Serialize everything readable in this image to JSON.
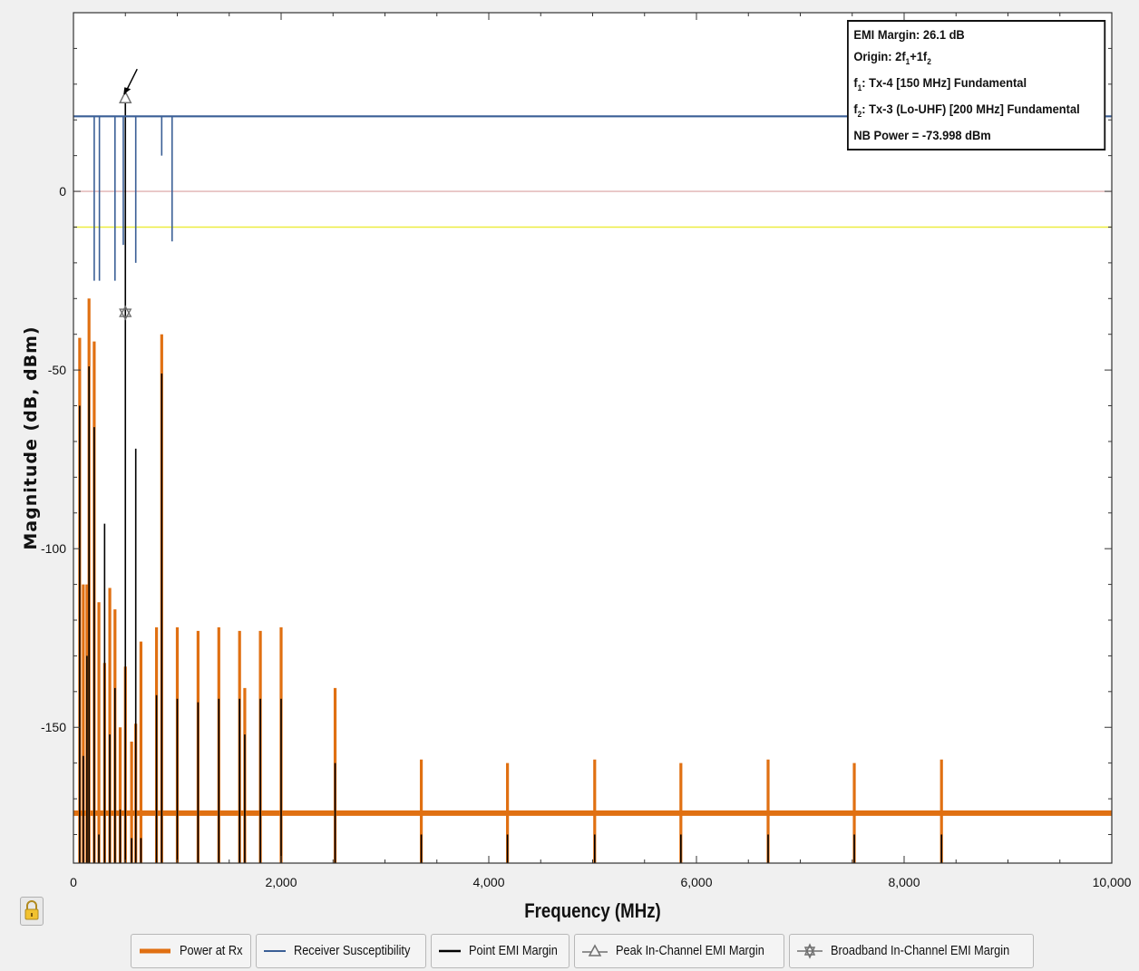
{
  "colors": {
    "power": "#e07012",
    "susceptibility": "#3a5f96",
    "point_margin": "#000000",
    "peak_margin": "#707070",
    "broadband_margin": "#707070",
    "zero_line": "#d9a0a0",
    "threshold_line": "#ecec40",
    "plot_bg": "#ffffff"
  },
  "info_box": {
    "line1": "EMI Margin: 26.1 dB",
    "line2_prefix": "Origin: 2f",
    "line2_sub1": "1",
    "line2_mid": "+1f",
    "line2_sub2": "2",
    "line3_prefix": "f",
    "line3_sub": "1",
    "line3_text": ": Tx-4 [150 MHz] Fundamental",
    "line4_prefix": "f",
    "line4_sub": "2",
    "line4_text": ": Tx-3 (Lo-UHF) [200 MHz] Fundamental",
    "line5": "NB Power = -73.998 dBm"
  },
  "legend": [
    {
      "label": "Power at Rx",
      "icon": "thick-orange-line-icon"
    },
    {
      "label": "Receiver Susceptibility",
      "icon": "blue-line-icon"
    },
    {
      "label": "Point EMI Margin",
      "icon": "black-line-icon"
    },
    {
      "label": "Peak In-Channel EMI Margin",
      "icon": "triangle-marker-icon"
    },
    {
      "label": "Broadband In-Channel EMI Margin",
      "icon": "star-marker-icon"
    }
  ],
  "lock_icon": "padlock-icon",
  "chart_data": {
    "type": "line",
    "xlabel": "Frequency (MHz)",
    "ylabel": "Magnitude (dB, dBm)",
    "xlim": [
      0,
      10000
    ],
    "ylim": [
      -188,
      50
    ],
    "x_ticks": [
      0,
      2000,
      4000,
      6000,
      8000,
      10000
    ],
    "x_tick_labels": [
      "0",
      "2,000",
      "4,000",
      "6,000",
      "8,000",
      "10,000"
    ],
    "y_ticks": [
      0,
      -50,
      -100,
      -150
    ],
    "y_tick_labels": [
      "0",
      "-50",
      "-100",
      "-150"
    ],
    "grid": false,
    "legend_position": "bottom",
    "power_floor": -174,
    "susceptibility_level": 21,
    "zero_line": 0,
    "threshold_line": -10,
    "power_spikes": [
      {
        "x": 60,
        "y": -41
      },
      {
        "x": 95,
        "y": -110
      },
      {
        "x": 130,
        "y": -110
      },
      {
        "x": 150,
        "y": -30
      },
      {
        "x": 200,
        "y": -42
      },
      {
        "x": 245,
        "y": -115
      },
      {
        "x": 300,
        "y": -132
      },
      {
        "x": 350,
        "y": -111
      },
      {
        "x": 400,
        "y": -117
      },
      {
        "x": 450,
        "y": -150
      },
      {
        "x": 500,
        "y": -133
      },
      {
        "x": 560,
        "y": -154
      },
      {
        "x": 600,
        "y": -149
      },
      {
        "x": 650,
        "y": -126
      },
      {
        "x": 800,
        "y": -122
      },
      {
        "x": 850,
        "y": -40
      },
      {
        "x": 1000,
        "y": -122
      },
      {
        "x": 1200,
        "y": -123
      },
      {
        "x": 1400,
        "y": -122
      },
      {
        "x": 1600,
        "y": -123
      },
      {
        "x": 1650,
        "y": -139
      },
      {
        "x": 1800,
        "y": -123
      },
      {
        "x": 2000,
        "y": -122
      },
      {
        "x": 2520,
        "y": -139
      },
      {
        "x": 3350,
        "y": -159
      },
      {
        "x": 4180,
        "y": -160
      },
      {
        "x": 5020,
        "y": -159
      },
      {
        "x": 5850,
        "y": -160
      },
      {
        "x": 6690,
        "y": -159
      },
      {
        "x": 7520,
        "y": -160
      },
      {
        "x": 8360,
        "y": -159
      }
    ],
    "point_margin_lines": [
      {
        "x": 60,
        "y": -60
      },
      {
        "x": 95,
        "y": -158
      },
      {
        "x": 130,
        "y": -130
      },
      {
        "x": 150,
        "y": -49
      },
      {
        "x": 200,
        "y": -66
      },
      {
        "x": 245,
        "y": -180
      },
      {
        "x": 300,
        "y": -93
      },
      {
        "x": 350,
        "y": -152
      },
      {
        "x": 400,
        "y": -139
      },
      {
        "x": 450,
        "y": -173
      },
      {
        "x": 500,
        "y": 26
      },
      {
        "x": 560,
        "y": -181
      },
      {
        "x": 600,
        "y": -72
      },
      {
        "x": 650,
        "y": -181
      },
      {
        "x": 800,
        "y": -141
      },
      {
        "x": 850,
        "y": -51
      },
      {
        "x": 1000,
        "y": -142
      },
      {
        "x": 1200,
        "y": -143
      },
      {
        "x": 1400,
        "y": -142
      },
      {
        "x": 1600,
        "y": -142
      },
      {
        "x": 1650,
        "y": -152
      },
      {
        "x": 1800,
        "y": -142
      },
      {
        "x": 2000,
        "y": -142
      },
      {
        "x": 2520,
        "y": -160
      },
      {
        "x": 3350,
        "y": -180
      },
      {
        "x": 4180,
        "y": -180
      },
      {
        "x": 5020,
        "y": -180
      },
      {
        "x": 5850,
        "y": -180
      },
      {
        "x": 6690,
        "y": -180
      },
      {
        "x": 7520,
        "y": -180
      },
      {
        "x": 8360,
        "y": -180
      }
    ],
    "susceptibility_notches": [
      {
        "x": 200,
        "y": -25
      },
      {
        "x": 250,
        "y": -25
      },
      {
        "x": 400,
        "y": -25
      },
      {
        "x": 480,
        "y": -15
      },
      {
        "x": 600,
        "y": -20
      },
      {
        "x": 850,
        "y": 10
      },
      {
        "x": 950,
        "y": -14
      }
    ],
    "peak_in_channel_margin": {
      "x": 500,
      "y": 26.1
    },
    "broadband_in_channel_margin": {
      "x": 500,
      "y": -34
    }
  }
}
